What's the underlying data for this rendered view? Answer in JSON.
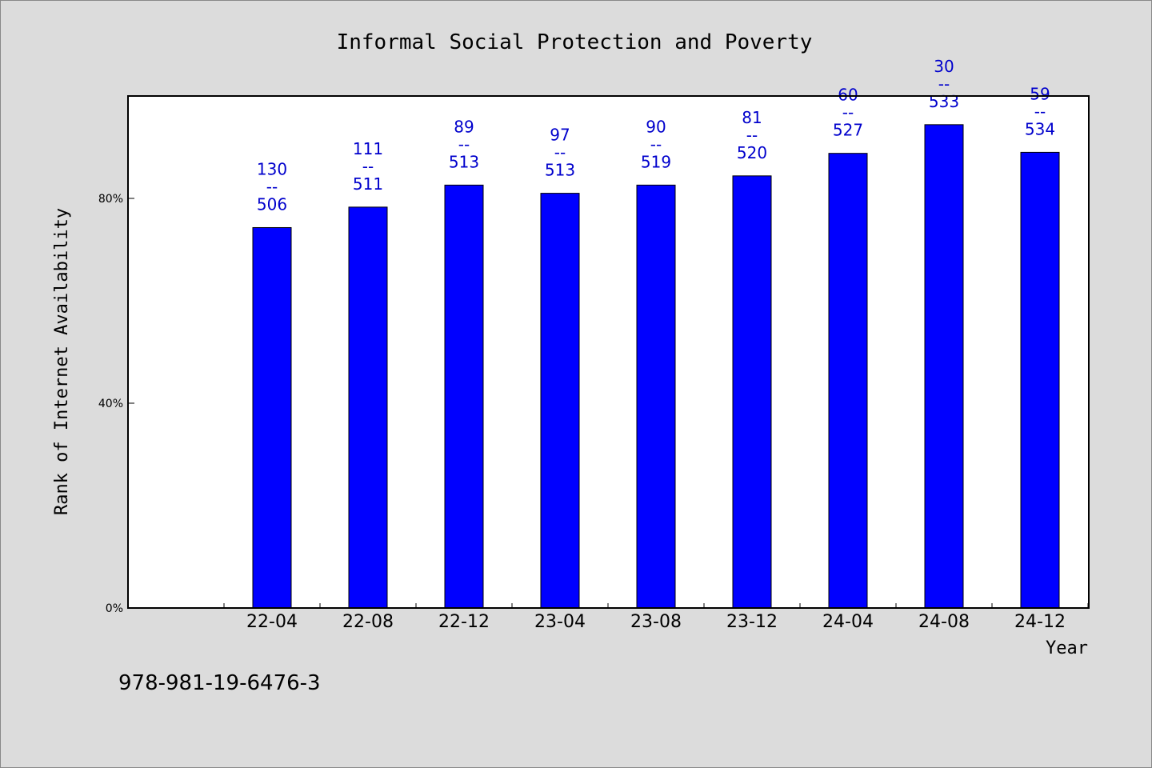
{
  "chart_data": {
    "type": "bar",
    "title": "Informal Social Protection and Poverty",
    "xlabel": "Year",
    "ylabel": "Rank of Internet Availability",
    "categories": [
      "22-04",
      "22-08",
      "22-12",
      "23-04",
      "23-08",
      "23-12",
      "24-04",
      "24-08",
      "24-12"
    ],
    "values": [
      74.3,
      78.3,
      82.6,
      81.0,
      82.6,
      84.4,
      88.8,
      94.4,
      89.0
    ],
    "bar_labels": [
      {
        "top": "130",
        "sep": "--",
        "bottom": "506"
      },
      {
        "top": "111",
        "sep": "--",
        "bottom": "511"
      },
      {
        "top": "89",
        "sep": "--",
        "bottom": "513"
      },
      {
        "top": "97",
        "sep": "--",
        "bottom": "513"
      },
      {
        "top": "90",
        "sep": "--",
        "bottom": "519"
      },
      {
        "top": "81",
        "sep": "--",
        "bottom": "520"
      },
      {
        "top": "60",
        "sep": "--",
        "bottom": "527"
      },
      {
        "top": "30",
        "sep": "--",
        "bottom": "533"
      },
      {
        "top": "59",
        "sep": "--",
        "bottom": "534"
      }
    ],
    "yticks": [
      0,
      40,
      80
    ],
    "ytick_labels": [
      "0%",
      "40%",
      "80%"
    ],
    "ylim": [
      0,
      100
    ],
    "grid": false,
    "colors": {
      "bar": "#0000ff",
      "label": "#0000cc",
      "background": "#dcdcdc",
      "plot": "#ffffff"
    }
  },
  "footnote": "978-981-19-6476-3"
}
